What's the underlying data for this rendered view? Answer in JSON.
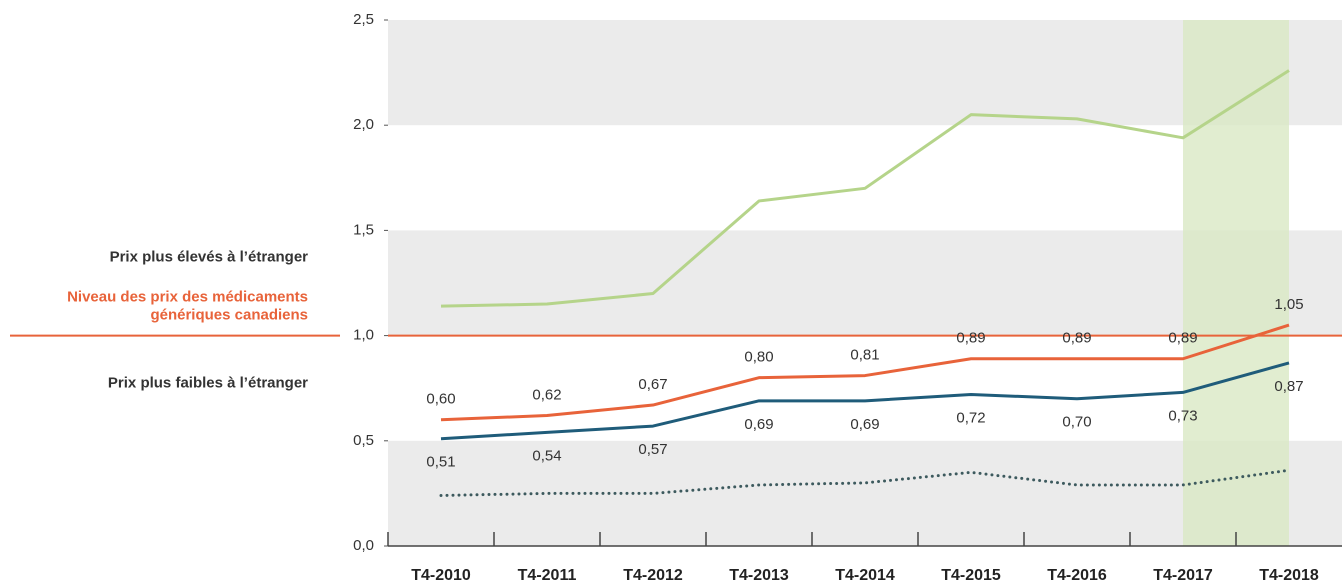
{
  "chart_data": {
    "type": "line",
    "categories": [
      "T4-2010",
      "T4-2011",
      "T4-2012",
      "T4-2013",
      "T4-2014",
      "T4-2015",
      "T4-2016",
      "T4-2017",
      "T4-2018"
    ],
    "series": [
      {
        "color": "#b5d48a",
        "dash": "solid",
        "values": [
          1.14,
          1.15,
          1.2,
          1.64,
          1.7,
          2.05,
          2.03,
          1.94,
          2.26
        ]
      },
      {
        "color": "#e8633a",
        "dash": "solid",
        "label_side": "above",
        "values": [
          0.6,
          0.62,
          0.67,
          0.8,
          0.81,
          0.89,
          0.89,
          0.89,
          1.05
        ],
        "value_labels": [
          "0,60",
          "0,62",
          "0,67",
          "0,80",
          "0,81",
          "0,89",
          "0,89",
          "0,89",
          "1,05"
        ]
      },
      {
        "color": "#1f5c7a",
        "dash": "solid",
        "label_side": "below",
        "values": [
          0.51,
          0.54,
          0.57,
          0.69,
          0.69,
          0.72,
          0.7,
          0.73,
          0.87
        ],
        "value_labels": [
          "0,51",
          "0,54",
          "0,57",
          "0,69",
          "0,69",
          "0,72",
          "0,70",
          "0,73",
          "0,87"
        ]
      },
      {
        "color": "#3d5a5e",
        "dash": "dotted",
        "values": [
          0.24,
          0.25,
          0.25,
          0.29,
          0.3,
          0.35,
          0.29,
          0.29,
          0.36
        ]
      }
    ],
    "ylim": [
      0,
      2.5
    ],
    "yticks": [
      {
        "value": 0,
        "label": "0,0"
      },
      {
        "value": 0.5,
        "label": "0,5"
      },
      {
        "value": 1,
        "label": "1,0"
      },
      {
        "value": 1.5,
        "label": "1,5"
      },
      {
        "value": 2,
        "label": "2,0"
      },
      {
        "value": 2.5,
        "label": "2,5"
      }
    ],
    "band_color": "#ebebeb",
    "highlight": {
      "from": 7,
      "to": 8,
      "color": "#d9e8c4"
    },
    "reference_line": {
      "value": 1,
      "color": "#e8633a"
    },
    "annotations": {
      "above": "Prix plus élevés à l’étranger",
      "reference": [
        "Niveau des prix des médicaments",
        "génériques canadiens"
      ],
      "below": "Prix plus faibles à l’étranger"
    }
  }
}
